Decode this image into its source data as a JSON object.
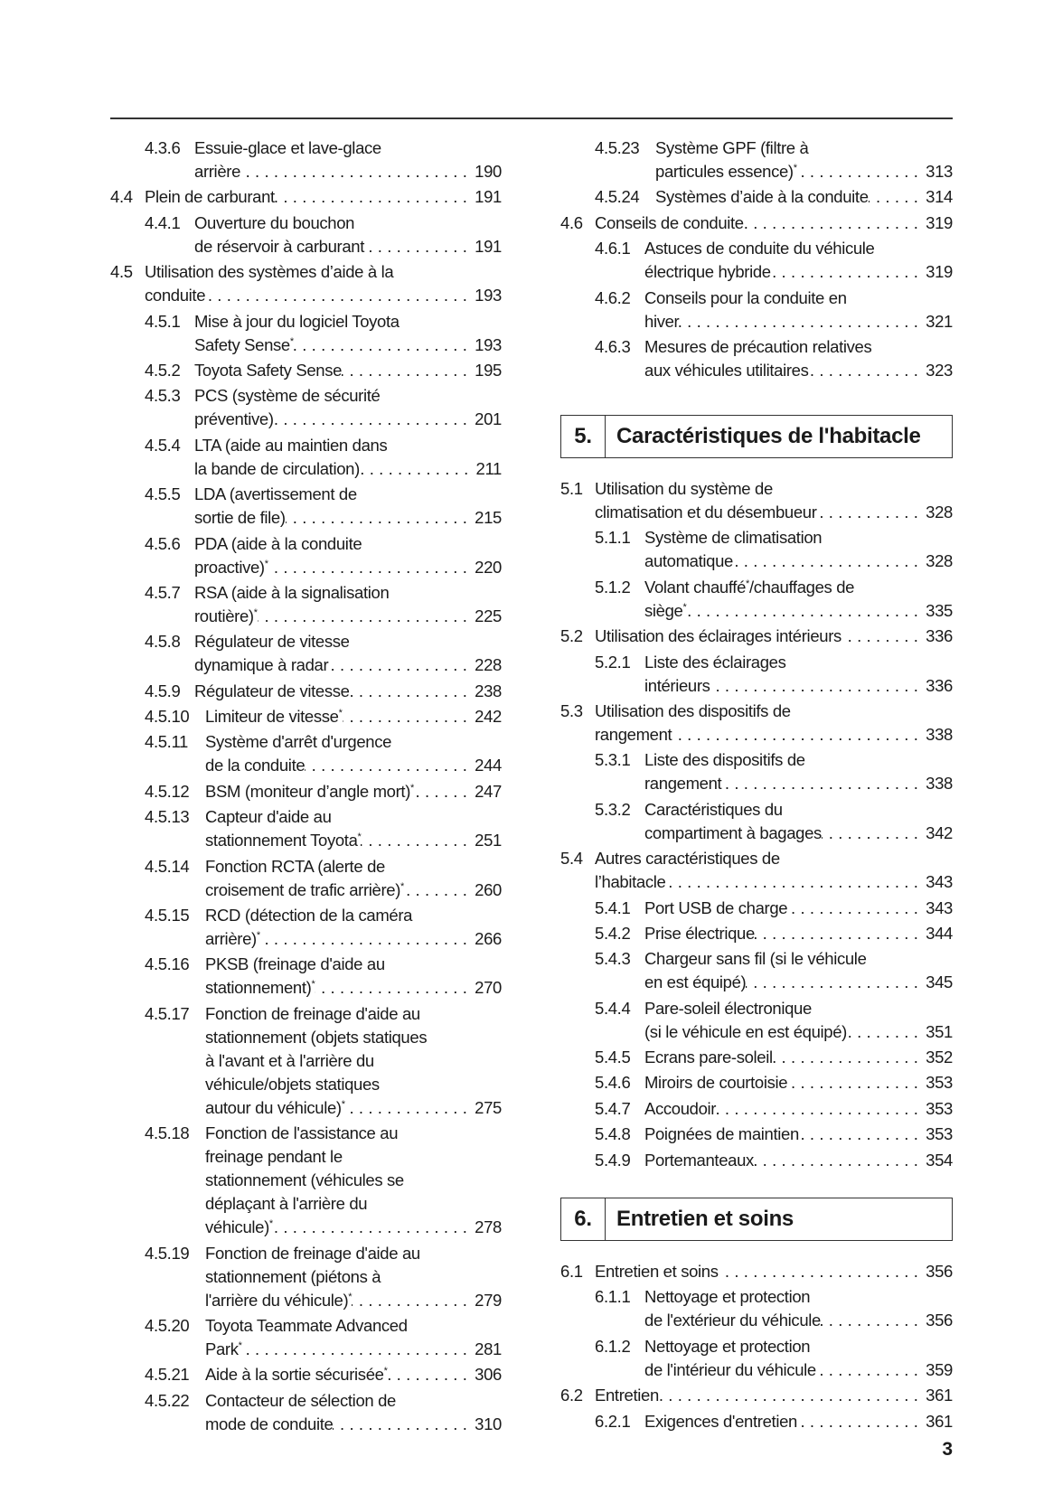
{
  "left_column": [
    {
      "num": "4.3.6",
      "level": 3,
      "lines": [
        "Essuie-glace et lave-glace",
        "arrière"
      ],
      "page": "190"
    },
    {
      "num": "4.4",
      "level": 2,
      "lines": [
        "Plein de carburant"
      ],
      "page": "191"
    },
    {
      "num": "4.4.1",
      "level": 3,
      "lines": [
        "Ouverture du bouchon",
        "de réservoir à carburant"
      ],
      "page": "191"
    },
    {
      "num": "4.5",
      "level": 2,
      "lines": [
        "Utilisation des systèmes d’aide à la",
        "conduite"
      ],
      "page": "193"
    },
    {
      "num": "4.5.1",
      "level": 3,
      "lines": [
        "Mise à jour du logiciel Toyota",
        "Safety Sense*"
      ],
      "page": "193"
    },
    {
      "num": "4.5.2",
      "level": 3,
      "lines": [
        "Toyota Safety Sense"
      ],
      "page": "195"
    },
    {
      "num": "4.5.3",
      "level": 3,
      "lines": [
        "PCS (système de sécurité",
        "préventive)"
      ],
      "page": "201"
    },
    {
      "num": "4.5.4",
      "level": 3,
      "lines": [
        "LTA (aide au maintien dans",
        "la bande de circulation)"
      ],
      "page": "211"
    },
    {
      "num": "4.5.5",
      "level": 3,
      "lines": [
        "LDA (avertissement de",
        "sortie de file)"
      ],
      "page": "215"
    },
    {
      "num": "4.5.6",
      "level": 3,
      "lines": [
        "PDA (aide à la conduite",
        "proactive)*"
      ],
      "page": "220"
    },
    {
      "num": "4.5.7",
      "level": 3,
      "lines": [
        "RSA (aide à la signalisation",
        "routière)*"
      ],
      "page": "225"
    },
    {
      "num": "4.5.8",
      "level": 3,
      "lines": [
        "Régulateur de vitesse",
        "dynamique à radar"
      ],
      "page": "228"
    },
    {
      "num": "4.5.9",
      "level": 3,
      "lines": [
        "Régulateur de vitesse"
      ],
      "page": "238"
    },
    {
      "num": "4.5.10",
      "level": 3,
      "lines": [
        "Limiteur de vitesse*"
      ],
      "page": "242"
    },
    {
      "num": "4.5.11",
      "level": 3,
      "lines": [
        "Système d'arrêt d'urgence",
        "de la conduite"
      ],
      "page": "244"
    },
    {
      "num": "4.5.12",
      "level": 3,
      "lines": [
        "BSM (moniteur d’angle mort)*"
      ],
      "page": "247"
    },
    {
      "num": "4.5.13",
      "level": 3,
      "lines": [
        "Capteur d'aide au",
        "stationnement Toyota*"
      ],
      "page": "251"
    },
    {
      "num": "4.5.14",
      "level": 3,
      "lines": [
        "Fonction RCTA (alerte de",
        "croisement de trafic arrière)*"
      ],
      "page": "260"
    },
    {
      "num": "4.5.15",
      "level": 3,
      "lines": [
        "RCD (détection de la caméra",
        "arrière)*"
      ],
      "page": "266"
    },
    {
      "num": "4.5.16",
      "level": 3,
      "lines": [
        "PKSB (freinage d'aide au",
        "stationnement)*"
      ],
      "page": "270"
    },
    {
      "num": "4.5.17",
      "level": 3,
      "lines": [
        "Fonction de freinage d'aide au",
        "stationnement (objets statiques",
        "à l'avant et à l'arrière du",
        "véhicule/objets statiques",
        "autour du véhicule)*"
      ],
      "page": "275"
    },
    {
      "num": "4.5.18",
      "level": 3,
      "lines": [
        "Fonction de l'assistance au",
        "freinage pendant le",
        "stationnement (véhicules se",
        "déplaçant à l'arrière du",
        "véhicule)*"
      ],
      "page": "278"
    },
    {
      "num": "4.5.19",
      "level": 3,
      "lines": [
        "Fonction de freinage d'aide au",
        "stationnement (piétons à",
        "l'arrière du véhicule)*"
      ],
      "page": "279"
    },
    {
      "num": "4.5.20",
      "level": 3,
      "lines": [
        "Toyota Teammate Advanced",
        "Park*"
      ],
      "page": "281"
    },
    {
      "num": "4.5.21",
      "level": 3,
      "lines": [
        "Aide à la sortie sécurisée*"
      ],
      "page": "306"
    },
    {
      "num": "4.5.22",
      "level": 3,
      "lines": [
        "Contacteur de sélection de",
        "mode de conduite"
      ],
      "page": "310"
    }
  ],
  "right_top": [
    {
      "num": "4.5.23",
      "level": 3,
      "lines": [
        "Système GPF (filtre à",
        "particules essence)*"
      ],
      "page": "313"
    },
    {
      "num": "4.5.24",
      "level": 3,
      "lines": [
        "Systèmes d’aide à la conduite"
      ],
      "page": "314"
    },
    {
      "num": "4.6",
      "level": 2,
      "lines": [
        "Conseils de conduite"
      ],
      "page": "319"
    },
    {
      "num": "4.6.1",
      "level": 3,
      "lines": [
        "Astuces de conduite du véhicule",
        "électrique hybride"
      ],
      "page": "319"
    },
    {
      "num": "4.6.2",
      "level": 3,
      "lines": [
        "Conseils pour la conduite en",
        "hiver"
      ],
      "page": "321"
    },
    {
      "num": "4.6.3",
      "level": 3,
      "lines": [
        "Mesures de précaution relatives",
        "aux véhicules utilitaires"
      ],
      "page": "323"
    }
  ],
  "section5": {
    "number": "5.",
    "title": "Caractéristiques de l'habitacle"
  },
  "section5_entries": [
    {
      "num": "5.1",
      "level": 2,
      "lines": [
        "Utilisation du système de",
        "climatisation et du désembueur"
      ],
      "page": "328"
    },
    {
      "num": "5.1.1",
      "level": 3,
      "lines": [
        "Système de climatisation",
        "automatique"
      ],
      "page": "328"
    },
    {
      "num": "5.1.2",
      "level": 3,
      "lines": [
        "Volant chauffé*/chauffages de",
        "siège*"
      ],
      "page": "335"
    },
    {
      "num": "5.2",
      "level": 2,
      "lines": [
        "Utilisation des éclairages intérieurs"
      ],
      "page": "336"
    },
    {
      "num": "5.2.1",
      "level": 3,
      "lines": [
        "Liste des éclairages",
        "intérieurs"
      ],
      "page": "336"
    },
    {
      "num": "5.3",
      "level": 2,
      "lines": [
        "Utilisation des dispositifs de",
        "rangement"
      ],
      "page": "338"
    },
    {
      "num": "5.3.1",
      "level": 3,
      "lines": [
        "Liste des dispositifs de",
        "rangement"
      ],
      "page": "338"
    },
    {
      "num": "5.3.2",
      "level": 3,
      "lines": [
        "Caractéristiques du",
        "compartiment à bagages"
      ],
      "page": "342"
    },
    {
      "num": "5.4",
      "level": 2,
      "lines": [
        "Autres caractéristiques de",
        "l’habitacle"
      ],
      "page": "343"
    },
    {
      "num": "5.4.1",
      "level": 3,
      "lines": [
        "Port USB de charge"
      ],
      "page": "343"
    },
    {
      "num": "5.4.2",
      "level": 3,
      "lines": [
        "Prise électrique"
      ],
      "page": "344"
    },
    {
      "num": "5.4.3",
      "level": 3,
      "lines": [
        "Chargeur sans fil (si le véhicule",
        "en est équipé)"
      ],
      "page": "345"
    },
    {
      "num": "5.4.4",
      "level": 3,
      "lines": [
        "Pare-soleil électronique",
        "(si le véhicule en est équipé)"
      ],
      "page": "351"
    },
    {
      "num": "5.4.5",
      "level": 3,
      "lines": [
        "Ecrans pare-soleil"
      ],
      "page": "352"
    },
    {
      "num": "5.4.6",
      "level": 3,
      "lines": [
        "Miroirs de courtoisie"
      ],
      "page": "353"
    },
    {
      "num": "5.4.7",
      "level": 3,
      "lines": [
        "Accoudoir"
      ],
      "page": "353"
    },
    {
      "num": "5.4.8",
      "level": 3,
      "lines": [
        "Poignées de maintien"
      ],
      "page": "353"
    },
    {
      "num": "5.4.9",
      "level": 3,
      "lines": [
        "Portemanteaux"
      ],
      "page": "354"
    }
  ],
  "section6": {
    "number": "6.",
    "title": "Entretien et soins"
  },
  "section6_entries": [
    {
      "num": "6.1",
      "level": 2,
      "lines": [
        "Entretien et soins"
      ],
      "page": "356"
    },
    {
      "num": "6.1.1",
      "level": 3,
      "lines": [
        "Nettoyage et protection",
        "de l'extérieur du véhicule"
      ],
      "page": "356"
    },
    {
      "num": "6.1.2",
      "level": 3,
      "lines": [
        "Nettoyage et protection",
        "de l'intérieur du véhicule"
      ],
      "page": "359"
    },
    {
      "num": "6.2",
      "level": 2,
      "lines": [
        "Entretien"
      ],
      "page": "361"
    },
    {
      "num": "6.2.1",
      "level": 3,
      "lines": [
        "Exigences d'entretien"
      ],
      "page": "361"
    }
  ],
  "page_number": "3"
}
